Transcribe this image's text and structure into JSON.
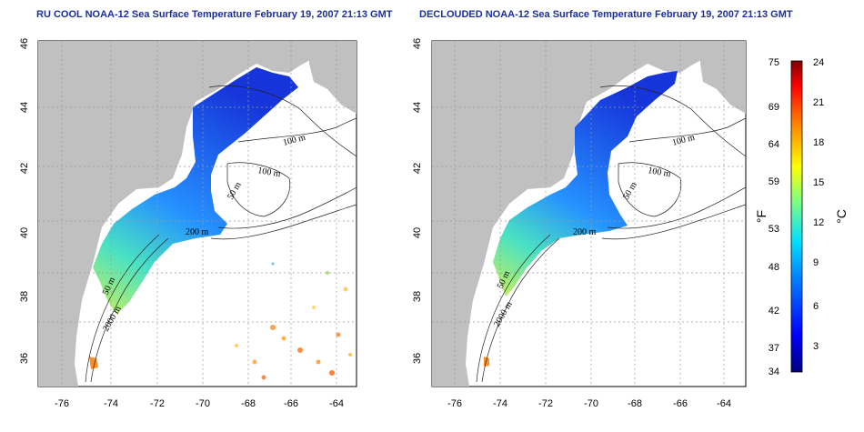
{
  "panels": [
    {
      "title": "RU COOL NOAA-12 Sea Surface Temperature February 19, 2007 21:13 GMT",
      "depth_labels": [
        "100 m",
        "100 m",
        "50 m",
        "200 m",
        "50 m",
        "2000 m"
      ],
      "cloud_masked": false
    },
    {
      "title": "DECLOUDED NOAA-12 Sea Surface Temperature February 19, 2007 21:13 GMT",
      "depth_labels": [
        "100 m",
        "100 m",
        "50 m",
        "200 m",
        "50 m",
        "2000 m"
      ],
      "cloud_masked": true
    }
  ],
  "map": {
    "lon_ticks": [
      "-76",
      "-74",
      "-72",
      "-70",
      "-68",
      "-66",
      "-64"
    ],
    "lat_ticks": [
      "36",
      "38",
      "40",
      "42",
      "44",
      "46"
    ],
    "lon_range": [
      -77,
      -63
    ],
    "lat_range": [
      35,
      46
    ],
    "land_color": "#c0c0c0",
    "ocean_color": "#ffffff"
  },
  "colorbar": {
    "fahrenheit_ticks": [
      "75",
      "69",
      "64",
      "59",
      "53",
      "48",
      "42",
      "37",
      "34"
    ],
    "celsius_ticks": [
      "24",
      "21",
      "18",
      "15",
      "12",
      "9",
      "6",
      "3"
    ],
    "f_label": "°F",
    "c_label": "°C",
    "colors": [
      "#00007f",
      "#0000ff",
      "#007fff",
      "#00ffff",
      "#7fff7f",
      "#ffff00",
      "#ff7f00",
      "#ff0000",
      "#7f0000"
    ]
  }
}
